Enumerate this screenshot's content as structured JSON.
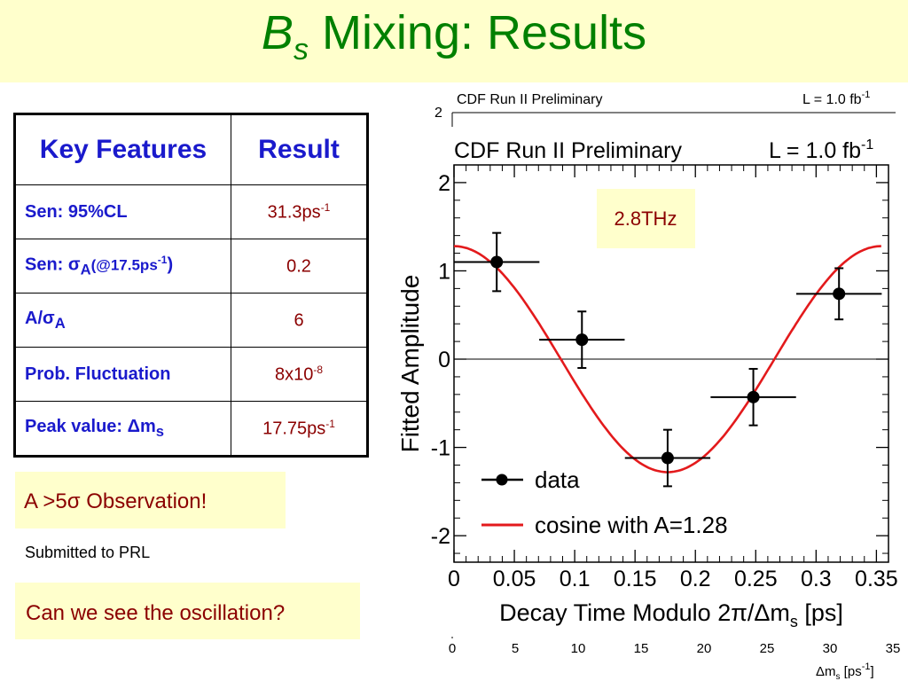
{
  "slide": {
    "title_italic": "B",
    "title_sub": "s",
    "title_rest": " Mixing: Results"
  },
  "table": {
    "headers": [
      "Key Features",
      "Result"
    ],
    "rows": [
      {
        "feature": "Sen: 95%CL",
        "result_base": "31.3ps",
        "result_sup": "-1"
      },
      {
        "feature_prefix": "Sen: σ",
        "feature_sub": "A",
        "feature_paren": "(@17.5ps",
        "feature_paren_sup": "-1",
        "feature_close": ")",
        "result_base": "0.2",
        "result_sup": ""
      },
      {
        "feature_prefix": "A/σ",
        "feature_sub": "A",
        "result_base": "6",
        "result_sup": ""
      },
      {
        "feature": "Prob. Fluctuation",
        "result_base": "8x10",
        "result_sup": "-8"
      },
      {
        "feature_prefix": "Peak value: Δm",
        "feature_sub": "s",
        "result_base": "17.75ps",
        "result_sup": "-1"
      }
    ]
  },
  "notes": {
    "observation": "A >5σ Observation!",
    "submitted": "Submitted to PRL",
    "question": "Can we see the oscillation?"
  },
  "chart_data": {
    "type": "scatter",
    "header_left": "CDF Run II Preliminary",
    "header_right_base": "L = 1.0 fb",
    "header_right_sup": "-1",
    "annotation": "2.8THz",
    "ylabel": "Fitted Amplitude",
    "xlabel_base": "Decay Time Modulo 2π/Δm",
    "xlabel_sub": "s",
    "xlabel_unit": " [ps]",
    "xlim": [
      0,
      0.36
    ],
    "ylim": [
      -2.3,
      2.2
    ],
    "x_ticks": [
      "0",
      "0.05",
      "0.1",
      "0.15",
      "0.2",
      "0.25",
      "0.3",
      "0.35"
    ],
    "y_ticks": [
      "2",
      "1",
      "0",
      "-1",
      "-2"
    ],
    "legend": {
      "data": "data",
      "fit": "cosine with A=1.28"
    },
    "fit": {
      "amplitude": 1.28,
      "period": 0.354
    },
    "series": [
      {
        "name": "data",
        "points": [
          {
            "x": 0.0354,
            "y": 1.1,
            "xerr": 0.0354,
            "yerr": 0.33
          },
          {
            "x": 0.106,
            "y": 0.22,
            "xerr": 0.0354,
            "yerr": 0.32
          },
          {
            "x": 0.177,
            "y": -1.12,
            "xerr": 0.0354,
            "yerr": 0.32
          },
          {
            "x": 0.248,
            "y": -0.43,
            "xerr": 0.0354,
            "yerr": 0.32
          },
          {
            "x": 0.319,
            "y": 0.74,
            "xerr": 0.0354,
            "yerr": 0.29
          }
        ]
      }
    ],
    "background": {
      "header_left": "CDF Run II Preliminary",
      "header_right_base": "L = 1.0 fb",
      "header_right_sup": "-1",
      "top_tick": "2",
      "x_ticks": [
        "0",
        "5",
        "10",
        "15",
        "20",
        "25",
        "30",
        "35"
      ],
      "xlabel_base": "Δm",
      "xlabel_sub": "s",
      "xlabel_unit_base": " [ps",
      "xlabel_unit_sup": "-1",
      "xlabel_unit_close": "]"
    }
  }
}
